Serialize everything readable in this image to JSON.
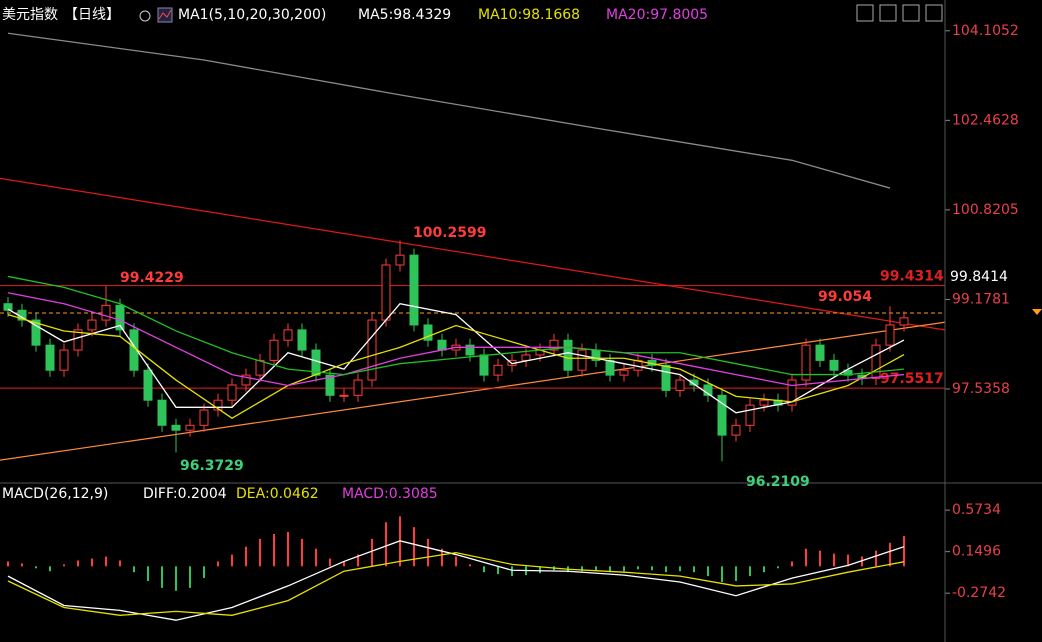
{
  "chart_data": [
    {
      "type": "candlestick",
      "title": "美元指数",
      "period": "【日线】",
      "indicator": "MA1(5,10,20,30,200)",
      "open": [
        99.1,
        98.98,
        98.8,
        98.34,
        97.88,
        98.25,
        98.62,
        98.8,
        99.07,
        98.62,
        97.88,
        97.33,
        96.87,
        96.78,
        96.87,
        97.15,
        97.33,
        97.61,
        97.79,
        98.06,
        98.43,
        98.62,
        98.25,
        97.79,
        97.42,
        97.42,
        97.7,
        98.8,
        99.81,
        99.99,
        98.71,
        98.43,
        98.25,
        98.34,
        98.16,
        97.79,
        97.97,
        98.06,
        98.16,
        98.25,
        98.43,
        97.88,
        98.25,
        98.06,
        97.79,
        97.88,
        98.06,
        97.97,
        97.51,
        97.7,
        97.61,
        97.42,
        96.69,
        96.87,
        97.24,
        97.33,
        97.24,
        97.7,
        98.34,
        98.06,
        97.88,
        97.79,
        97.73,
        98.34,
        98.71
      ],
      "high": [
        99.22,
        99.1,
        98.92,
        98.46,
        98.37,
        98.74,
        98.92,
        99.4229,
        99.19,
        98.74,
        98.0,
        97.45,
        96.99,
        96.99,
        97.27,
        97.45,
        97.73,
        97.91,
        98.18,
        98.55,
        98.74,
        98.74,
        98.37,
        97.91,
        97.54,
        97.82,
        98.92,
        99.93,
        100.2599,
        100.11,
        98.83,
        98.55,
        98.46,
        98.46,
        98.28,
        98.09,
        98.18,
        98.28,
        98.37,
        98.55,
        98.55,
        98.37,
        98.37,
        98.18,
        98.0,
        98.18,
        98.18,
        98.09,
        97.82,
        97.82,
        97.73,
        97.54,
        96.99,
        97.36,
        97.45,
        97.45,
        97.82,
        98.46,
        98.46,
        98.18,
        98.0,
        97.91,
        98.46,
        99.054,
        98.96
      ],
      "low": [
        98.86,
        98.68,
        98.22,
        97.76,
        97.76,
        98.13,
        98.5,
        98.68,
        98.5,
        97.76,
        97.21,
        96.75,
        96.3729,
        96.66,
        96.75,
        97.03,
        97.21,
        97.49,
        97.67,
        97.94,
        98.31,
        98.13,
        97.67,
        97.3,
        97.3,
        97.3,
        97.58,
        98.68,
        99.69,
        98.59,
        98.31,
        98.13,
        98.13,
        98.04,
        97.67,
        97.67,
        97.85,
        97.94,
        98.04,
        98.13,
        97.76,
        97.76,
        97.94,
        97.67,
        97.67,
        97.76,
        97.85,
        97.39,
        97.39,
        97.49,
        97.3,
        96.2109,
        96.57,
        96.75,
        97.12,
        97.12,
        97.12,
        97.58,
        97.94,
        97.76,
        97.67,
        97.61,
        97.61,
        98.22,
        98.59
      ],
      "close": [
        98.98,
        98.8,
        98.34,
        97.88,
        98.25,
        98.62,
        98.8,
        99.07,
        98.62,
        97.88,
        97.33,
        96.87,
        96.78,
        96.87,
        97.15,
        97.33,
        97.61,
        97.79,
        98.06,
        98.43,
        98.62,
        98.25,
        97.79,
        97.42,
        97.42,
        97.7,
        98.8,
        99.81,
        99.99,
        98.71,
        98.43,
        98.25,
        98.34,
        98.16,
        97.79,
        97.97,
        98.06,
        98.16,
        98.25,
        98.43,
        97.88,
        98.25,
        98.06,
        97.79,
        97.88,
        98.06,
        97.97,
        97.51,
        97.7,
        97.61,
        97.42,
        96.69,
        96.87,
        97.24,
        97.33,
        97.24,
        97.7,
        98.34,
        98.06,
        97.88,
        97.79,
        97.73,
        98.34,
        98.71,
        98.84
      ],
      "up_color": "#ff3b3b",
      "down_color": "#2fc45a",
      "ylim": [
        95.83,
        104.67
      ],
      "yticks": [
        104.1052,
        102.4628,
        100.8205,
        99.1781,
        97.5358
      ],
      "lines": [
        {
          "label": "MA5:",
          "color": "#ffffff",
          "x": [
            0,
            4,
            8,
            12,
            16,
            20,
            24,
            28,
            32,
            36,
            40,
            44,
            48,
            52,
            56,
            60,
            64
          ],
          "values": [
            99.0,
            98.4,
            98.7,
            97.2,
            97.2,
            98.2,
            97.9,
            99.1,
            98.9,
            98.0,
            98.2,
            98.0,
            97.8,
            97.1,
            97.3,
            97.9,
            98.4329
          ]
        },
        {
          "label": "MA10:",
          "color": "#e6e000",
          "x": [
            0,
            4,
            8,
            12,
            16,
            20,
            24,
            28,
            32,
            36,
            40,
            44,
            48,
            52,
            56,
            60,
            64
          ],
          "values": [
            98.9,
            98.6,
            98.5,
            97.7,
            97.0,
            97.6,
            98.0,
            98.3,
            98.7,
            98.4,
            98.1,
            98.1,
            97.9,
            97.4,
            97.3,
            97.6,
            98.1668
          ]
        },
        {
          "label": "MA20:",
          "color": "#e040e0",
          "x": [
            0,
            4,
            8,
            12,
            16,
            20,
            24,
            28,
            32,
            36,
            40,
            44,
            48,
            52,
            56,
            60,
            64
          ],
          "values": [
            99.3,
            99.1,
            98.8,
            98.3,
            97.8,
            97.6,
            97.8,
            98.1,
            98.3,
            98.3,
            98.3,
            98.2,
            98.0,
            97.8,
            97.6,
            97.7,
            97.8005
          ]
        },
        {
          "color": "#22c022",
          "x": [
            0,
            4,
            8,
            12,
            16,
            20,
            24,
            28,
            32,
            36,
            40,
            44,
            48,
            52,
            56,
            60,
            64
          ],
          "values": [
            99.6,
            99.4,
            99.1,
            98.6,
            98.2,
            97.9,
            97.8,
            98.0,
            98.1,
            98.2,
            98.3,
            98.2,
            98.2,
            98.0,
            97.8,
            97.8,
            97.9
          ]
        },
        {
          "color": "#8a8a8a",
          "x": [
            0,
            14,
            28,
            42,
            56,
            63
          ],
          "values": [
            104.06,
            103.57,
            102.93,
            102.32,
            101.73,
            101.22
          ]
        }
      ],
      "hlines": [
        {
          "value": 99.4314,
          "color": "#e02020"
        },
        {
          "value": 97.5517,
          "color": "#e02020"
        },
        {
          "value": 98.93,
          "color": "#ff9a1a",
          "dashed": true
        }
      ],
      "trendlines": [
        {
          "color": "#e01818",
          "x": [
            -0.6,
            66.9
          ],
          "values": [
            101.4,
            98.62
          ]
        },
        {
          "color": "#ff8c3a",
          "x": [
            -0.6,
            66.9
          ],
          "values": [
            96.23,
            98.76
          ]
        }
      ],
      "tag": 99.8414
    },
    {
      "type": "macd",
      "title": "MACD(26,12,9)",
      "ylim": [
        -0.65,
        0.83
      ],
      "yticks": [
        0.5734,
        0.1496,
        -0.2742
      ],
      "histogram_label": "MACD:",
      "histogram": [
        0.05,
        0.03,
        -0.02,
        -0.05,
        0.02,
        0.06,
        0.08,
        0.1,
        0.06,
        -0.06,
        -0.15,
        -0.22,
        -0.25,
        -0.22,
        -0.12,
        0.05,
        0.12,
        0.2,
        0.28,
        0.33,
        0.35,
        0.28,
        0.18,
        0.08,
        0.05,
        0.12,
        0.28,
        0.45,
        0.51,
        0.4,
        0.28,
        0.18,
        0.1,
        0.02,
        -0.06,
        -0.08,
        -0.1,
        -0.09,
        -0.07,
        -0.04,
        -0.06,
        -0.05,
        -0.04,
        -0.06,
        -0.05,
        -0.03,
        -0.04,
        -0.06,
        -0.05,
        -0.06,
        -0.1,
        -0.16,
        -0.15,
        -0.1,
        -0.06,
        -0.02,
        0.05,
        0.18,
        0.16,
        0.13,
        0.12,
        0.1,
        0.16,
        0.24,
        0.3085
      ],
      "up_color": "#ff3b3b",
      "down_color": "#2fc45a",
      "lines": [
        {
          "label": "DIFF:",
          "color": "#ffffff",
          "x": [
            0,
            4,
            8,
            12,
            16,
            20,
            24,
            28,
            32,
            36,
            40,
            44,
            48,
            52,
            56,
            60,
            64
          ],
          "values": [
            -0.1,
            -0.4,
            -0.45,
            -0.55,
            -0.42,
            -0.2,
            0.05,
            0.26,
            0.12,
            -0.04,
            -0.05,
            -0.09,
            -0.16,
            -0.3,
            -0.12,
            0.01,
            0.2004
          ]
        },
        {
          "label": "DEA:",
          "color": "#e6e000",
          "x": [
            0,
            4,
            8,
            12,
            16,
            20,
            24,
            28,
            32,
            36,
            40,
            44,
            48,
            52,
            56,
            60,
            64
          ],
          "values": [
            -0.15,
            -0.42,
            -0.5,
            -0.46,
            -0.5,
            -0.35,
            -0.05,
            0.05,
            0.14,
            0.02,
            -0.03,
            -0.06,
            -0.1,
            -0.2,
            -0.18,
            -0.06,
            0.0462
          ]
        }
      ]
    }
  ]
}
